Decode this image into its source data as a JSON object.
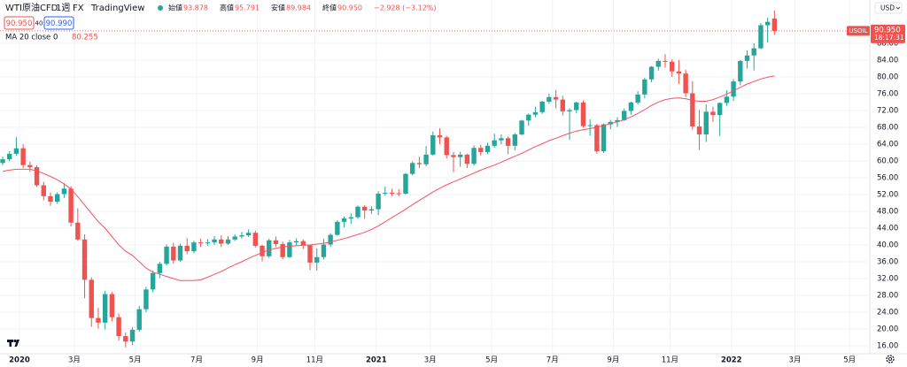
{
  "chart_data": {
    "type": "candlestick",
    "title": "WTI原油CFD",
    "interval": "1週",
    "exchange": "FX",
    "source": "TradingView",
    "ohlc_legend": {
      "names": [
        "始値",
        "高値",
        "安値",
        "終値"
      ],
      "values": [
        "93.878",
        "95.791",
        "89.984",
        "90.950"
      ],
      "change": "−2.928 (−3.12%)"
    },
    "sell_price": "90.950",
    "spread": "40",
    "buy_price": "90.990",
    "indicator": {
      "name": "MA 20 close 0",
      "value_label": "80.255",
      "color": "#f7525f",
      "values": [
        57.5,
        57.8,
        58,
        58,
        58,
        57.6,
        57,
        56.3,
        55.5,
        54.5,
        53.3,
        51.5,
        49.5,
        47.5,
        45.5,
        44,
        42,
        40,
        38.5,
        37.5,
        36,
        34.5,
        33.5,
        33,
        32.5,
        32,
        31.5,
        31.5,
        31.5,
        31.7,
        32.3,
        33,
        33.7,
        34.5,
        35.3,
        36,
        36.8,
        37.5,
        38.2,
        38.8,
        39.2,
        39.5,
        39.7,
        39.8,
        39.9,
        40,
        40.2,
        40.4,
        40.7,
        41.1,
        41.5,
        42,
        42.5,
        43,
        43.7,
        44.5,
        45.5,
        46.5,
        47.5,
        48.5,
        49.6,
        50.6,
        51.6,
        52.6,
        53.5,
        54.3,
        55,
        55.7,
        56.4,
        57.1,
        57.8,
        58.4,
        59,
        59.7,
        60.4,
        61.1,
        61.8,
        62.6,
        63.4,
        64.1,
        64.8,
        65.4,
        66,
        66.6,
        67.1,
        67.4,
        67.7,
        68,
        68.4,
        68.9,
        69.3,
        69.8,
        70.5,
        71.3,
        72.2,
        73.2,
        74,
        74.6,
        74.9,
        75,
        74.8,
        74.4,
        74.2,
        74.2,
        74.6,
        75.2,
        75.9,
        76.7,
        77.5,
        78.3,
        78.9,
        79.5,
        79.9,
        80.255
      ]
    },
    "currency": "USD",
    "symbol_tag": "USOIL",
    "last_price_label": "90.950",
    "countdown": "18:17:31",
    "up_color": "#26a69a",
    "down_color": "#ef5350",
    "open": [
      59.5,
      60.4,
      61.7,
      63.0,
      59.0,
      58.5,
      54.2,
      51.6,
      50.3,
      52.1,
      53.4,
      45.3,
      41.3,
      31.7,
      22.6,
      21.5,
      28.3,
      22.8,
      18.3,
      17.0,
      19.8,
      24.7,
      29.4,
      33.3,
      35.5,
      39.6,
      36.3,
      39.8,
      38.5,
      40.6,
      40.5,
      40.6,
      41.3,
      40.3,
      41.3,
      42.0,
      42.3,
      42.9,
      39.8,
      37.3,
      41.1,
      40.2,
      37.1,
      40.6,
      40.9,
      39.9,
      35.8,
      37.1,
      40.1,
      42.4,
      45.5,
      46.3,
      46.6,
      49.1,
      48.2,
      48.5,
      52.2,
      52.4,
      52.3,
      52.2,
      56.9,
      59.5,
      59.2,
      61.5,
      66.1,
      65.6,
      61.4,
      60.9,
      61.5,
      59.3,
      63.1,
      62.1,
      63.6,
      64.9,
      65.4,
      63.6,
      66.3,
      69.6,
      71.0,
      71.6,
      74.1,
      75.2,
      74.6,
      71.8,
      72.1,
      73.9,
      68.3,
      68.5,
      62.3,
      68.7,
      69.3,
      69.7,
      71.9,
      73.9,
      75.8,
      79.4,
      82.4,
      83.8,
      83.6,
      81.3,
      80.8,
      76.1,
      68.2,
      66.3,
      71.7,
      70.9,
      73.8,
      75.3,
      78.9,
      83.8,
      85.1,
      86.8,
      92.3,
      93.878
    ],
    "high": [
      61.0,
      62.3,
      65.6,
      64.0,
      59.8,
      59.0,
      55.0,
      52.5,
      52.5,
      54.7,
      54.0,
      48.7,
      42.5,
      32.3,
      25.0,
      29.1,
      28.8,
      23.7,
      19.2,
      20.4,
      25.5,
      30.0,
      33.9,
      36.0,
      40.1,
      40.5,
      40.3,
      41.6,
      41.0,
      41.5,
      41.4,
      42.1,
      42.3,
      42.1,
      42.5,
      43.1,
      43.7,
      43.4,
      40.0,
      41.5,
      42.0,
      40.8,
      41.2,
      41.6,
      41.3,
      40.1,
      39.2,
      41.5,
      42.8,
      45.9,
      46.8,
      47.5,
      49.4,
      49.5,
      49.2,
      52.8,
      53.9,
      53.4,
      53.3,
      57.1,
      59.9,
      61.0,
      63.5,
      67.0,
      67.8,
      66.0,
      62.2,
      62.2,
      61.7,
      63.7,
      63.8,
      64.3,
      66.5,
      66.3,
      65.8,
      66.6,
      69.8,
      71.3,
      72.9,
      74.3,
      76.0,
      76.9,
      75.5,
      72.5,
      74.1,
      74.4,
      69.9,
      68.8,
      68.9,
      69.8,
      70.4,
      72.5,
      74.1,
      76.6,
      79.8,
      82.6,
      84.3,
      85.4,
      84.2,
      84.0,
      81.7,
      79.0,
      72.1,
      73.4,
      72.9,
      73.9,
      76.8,
      79.5,
      84.0,
      86.3,
      88.0,
      92.8,
      94.1,
      95.791
    ],
    "low": [
      59.0,
      59.9,
      61.2,
      58.3,
      57.4,
      53.8,
      50.6,
      49.3,
      49.8,
      51.2,
      44.4,
      41.0,
      27.3,
      20.5,
      20.1,
      19.9,
      21.8,
      17.2,
      15.6,
      16.2,
      19.3,
      24.0,
      28.7,
      32.1,
      35.1,
      35.5,
      36.0,
      37.8,
      38.0,
      39.5,
      39.8,
      40.0,
      39.5,
      40.0,
      40.9,
      41.5,
      41.9,
      39.4,
      36.1,
      36.9,
      39.5,
      36.6,
      36.9,
      39.9,
      39.0,
      34.0,
      33.9,
      36.5,
      39.5,
      42.2,
      44.2,
      45.0,
      46.2,
      46.2,
      47.4,
      47.1,
      51.7,
      51.6,
      51.6,
      52.0,
      56.6,
      58.3,
      58.7,
      61.3,
      64.0,
      60.6,
      57.3,
      58.6,
      58.3,
      58.9,
      61.3,
      61.6,
      63.2,
      63.9,
      61.6,
      62.5,
      66.1,
      68.4,
      70.4,
      71.2,
      73.6,
      72.5,
      70.8,
      65.0,
      71.3,
      67.9,
      66.0,
      61.7,
      61.9,
      67.5,
      68.1,
      69.5,
      71.0,
      73.4,
      74.9,
      78.7,
      81.5,
      82.2,
      80.0,
      78.3,
      75.2,
      67.4,
      62.6,
      64.5,
      69.3,
      65.9,
      73.1,
      74.3,
      78.0,
      82.0,
      81.5,
      86.6,
      88.2,
      89.984
    ],
    "close": [
      60.4,
      61.7,
      63.0,
      59.0,
      58.5,
      54.2,
      51.6,
      50.3,
      52.1,
      53.4,
      45.3,
      41.3,
      31.7,
      22.6,
      21.5,
      28.3,
      22.8,
      18.3,
      17.0,
      19.8,
      24.7,
      29.4,
      33.3,
      35.5,
      39.6,
      36.3,
      39.8,
      38.5,
      40.6,
      40.5,
      40.6,
      41.3,
      40.3,
      41.3,
      42.0,
      42.3,
      42.9,
      39.8,
      37.3,
      41.1,
      40.2,
      37.1,
      40.6,
      40.9,
      39.9,
      35.8,
      37.1,
      40.1,
      42.4,
      45.5,
      46.3,
      46.6,
      49.1,
      48.2,
      48.5,
      52.2,
      52.4,
      52.3,
      52.2,
      56.9,
      59.5,
      59.2,
      61.5,
      66.1,
      65.6,
      61.4,
      60.9,
      61.5,
      59.3,
      63.1,
      62.1,
      63.6,
      64.9,
      65.4,
      63.6,
      66.3,
      69.6,
      71.0,
      71.6,
      74.1,
      75.2,
      74.6,
      71.8,
      72.1,
      73.9,
      68.3,
      68.5,
      62.3,
      68.7,
      69.3,
      69.7,
      71.9,
      73.9,
      75.8,
      79.4,
      82.4,
      83.8,
      83.6,
      81.3,
      80.8,
      76.1,
      68.2,
      66.3,
      71.7,
      70.9,
      73.8,
      75.3,
      78.9,
      83.8,
      85.1,
      86.8,
      92.3,
      93.1,
      90.95
    ],
    "xlim": [
      -0.39,
      126.7
    ],
    "xticks": [
      {
        "value": 2.46,
        "label": "2020"
      },
      {
        "value": 10.5,
        "label": "3月"
      },
      {
        "value": 19.4,
        "label": "5月"
      },
      {
        "value": 28.4,
        "label": "7月"
      },
      {
        "value": 37.3,
        "label": "9月"
      },
      {
        "value": 45.7,
        "label": "11月"
      },
      {
        "value": 54.7,
        "label": "2021"
      },
      {
        "value": 62.6,
        "label": "3月"
      },
      {
        "value": 71.6,
        "label": "5月"
      },
      {
        "value": 80.5,
        "label": "7月"
      },
      {
        "value": 89.4,
        "label": "9月"
      },
      {
        "value": 97.7,
        "label": "11月"
      },
      {
        "value": 106.7,
        "label": "2022"
      },
      {
        "value": 116,
        "label": "3月"
      },
      {
        "value": 124,
        "label": "5月"
      }
    ],
    "ylim": [
      14.1,
      98.3
    ],
    "yticks": [
      {
        "value": 16,
        "label": "16.00"
      },
      {
        "value": 20,
        "label": "20.00"
      },
      {
        "value": 24,
        "label": "24.00"
      },
      {
        "value": 28,
        "label": "28.00"
      },
      {
        "value": 32,
        "label": "32.00"
      },
      {
        "value": 36,
        "label": "36.00"
      },
      {
        "value": 40,
        "label": "40.00"
      },
      {
        "value": 44,
        "label": "44.00"
      },
      {
        "value": 48,
        "label": "48.00"
      },
      {
        "value": 52,
        "label": "52.00"
      },
      {
        "value": 56,
        "label": "56.00"
      },
      {
        "value": 60,
        "label": "60.00"
      },
      {
        "value": 64,
        "label": "64.00"
      },
      {
        "value": 68,
        "label": "68.00"
      },
      {
        "value": 72,
        "label": "72.00"
      },
      {
        "value": 76,
        "label": "76.00"
      },
      {
        "value": 80,
        "label": "80.00"
      },
      {
        "value": 84,
        "label": "84.00"
      },
      {
        "value": 88,
        "label": "88.00"
      }
    ],
    "grid": true
  }
}
